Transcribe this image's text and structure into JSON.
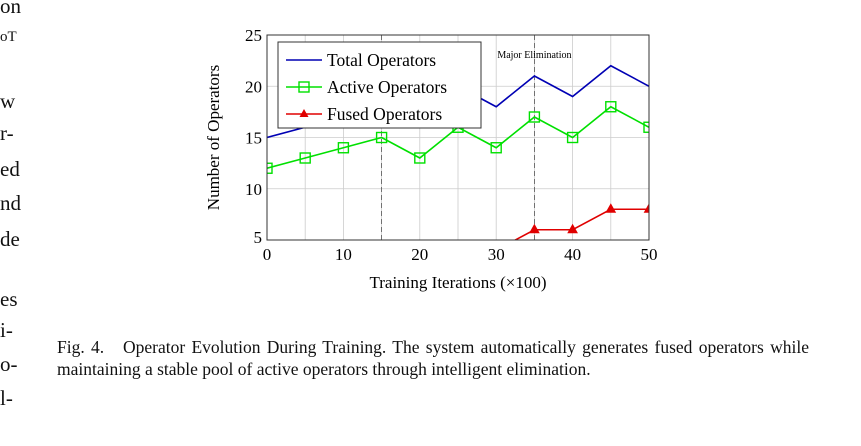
{
  "left_column_fragments": [
    "on",
    "oT",
    "w",
    "r-",
    "ed",
    "nd",
    "de",
    "es",
    "i-",
    "o-",
    "l-"
  ],
  "caption": {
    "label": "Fig. 4.",
    "text": "Operator Evolution During Training. The system automatically generates fused operators while maintaining a stable pool of active operators through intelligent elimination."
  },
  "chart_data": {
    "type": "line",
    "xlabel": "Training Iterations (×100)",
    "ylabel": "Number of Operators",
    "xlim": [
      0,
      50
    ],
    "ylim": [
      5,
      25
    ],
    "xticks": [
      0,
      10,
      20,
      30,
      40,
      50
    ],
    "yticks": [
      5,
      10,
      15,
      20,
      25
    ],
    "grid": true,
    "legend": "top-left",
    "annotations": [
      {
        "text": "Major Elimination",
        "x": 35
      }
    ],
    "vlines": [
      15,
      35
    ],
    "series": [
      {
        "name": "Total Operators",
        "color": "#0000b4",
        "marker": "none",
        "x": [
          0,
          5,
          10,
          15,
          20,
          25,
          30,
          35,
          40,
          45,
          50
        ],
        "y": [
          15,
          16,
          17,
          18,
          17,
          20,
          18,
          21,
          19,
          22,
          20
        ]
      },
      {
        "name": "Active Operators",
        "color": "#00e000",
        "marker": "square",
        "x": [
          0,
          5,
          10,
          15,
          20,
          25,
          30,
          35,
          40,
          45,
          50
        ],
        "y": [
          12,
          13,
          14,
          15,
          13,
          16,
          14,
          17,
          15,
          18,
          16
        ]
      },
      {
        "name": "Fused Operators",
        "color": "#e00000",
        "marker": "triangle",
        "x": [
          30,
          35,
          40,
          45,
          50
        ],
        "y": [
          4,
          6,
          6,
          8,
          8
        ]
      }
    ]
  }
}
